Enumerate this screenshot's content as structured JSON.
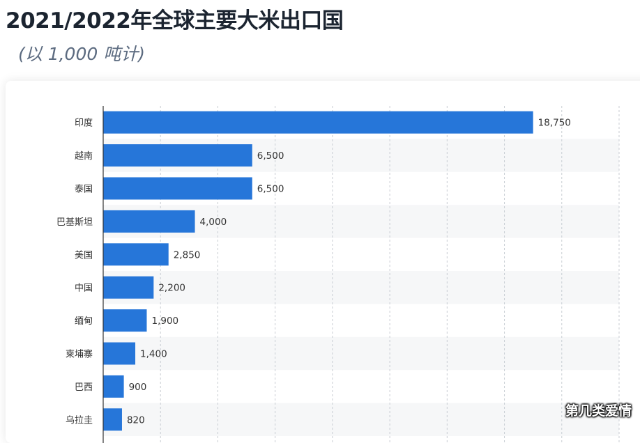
{
  "title": "2021/2022年全球主要大米出口国",
  "subtitle": "(以 1,000 吨计)",
  "watermark": "第几类爱情",
  "colors": {
    "bar": "#2676d9",
    "stripe": "#f6f7f8",
    "grid": "#c8cdd3",
    "axis": "#333333"
  },
  "chart_data": {
    "type": "bar",
    "orientation": "horizontal",
    "categories": [
      "印度",
      "越南",
      "泰国",
      "巴基斯坦",
      "美国",
      "中国",
      "缅甸",
      "柬埔寨",
      "巴西",
      "乌拉圭"
    ],
    "values": [
      18750,
      6500,
      6500,
      4000,
      2850,
      2200,
      1900,
      1400,
      900,
      820
    ],
    "value_labels": [
      "18,750",
      "6,500",
      "6,500",
      "4,000",
      "2,850",
      "2,200",
      "1,900",
      "1,400",
      "900",
      "820"
    ],
    "xlim": [
      0,
      22500
    ],
    "grid": true,
    "xlabel": "",
    "ylabel": ""
  }
}
